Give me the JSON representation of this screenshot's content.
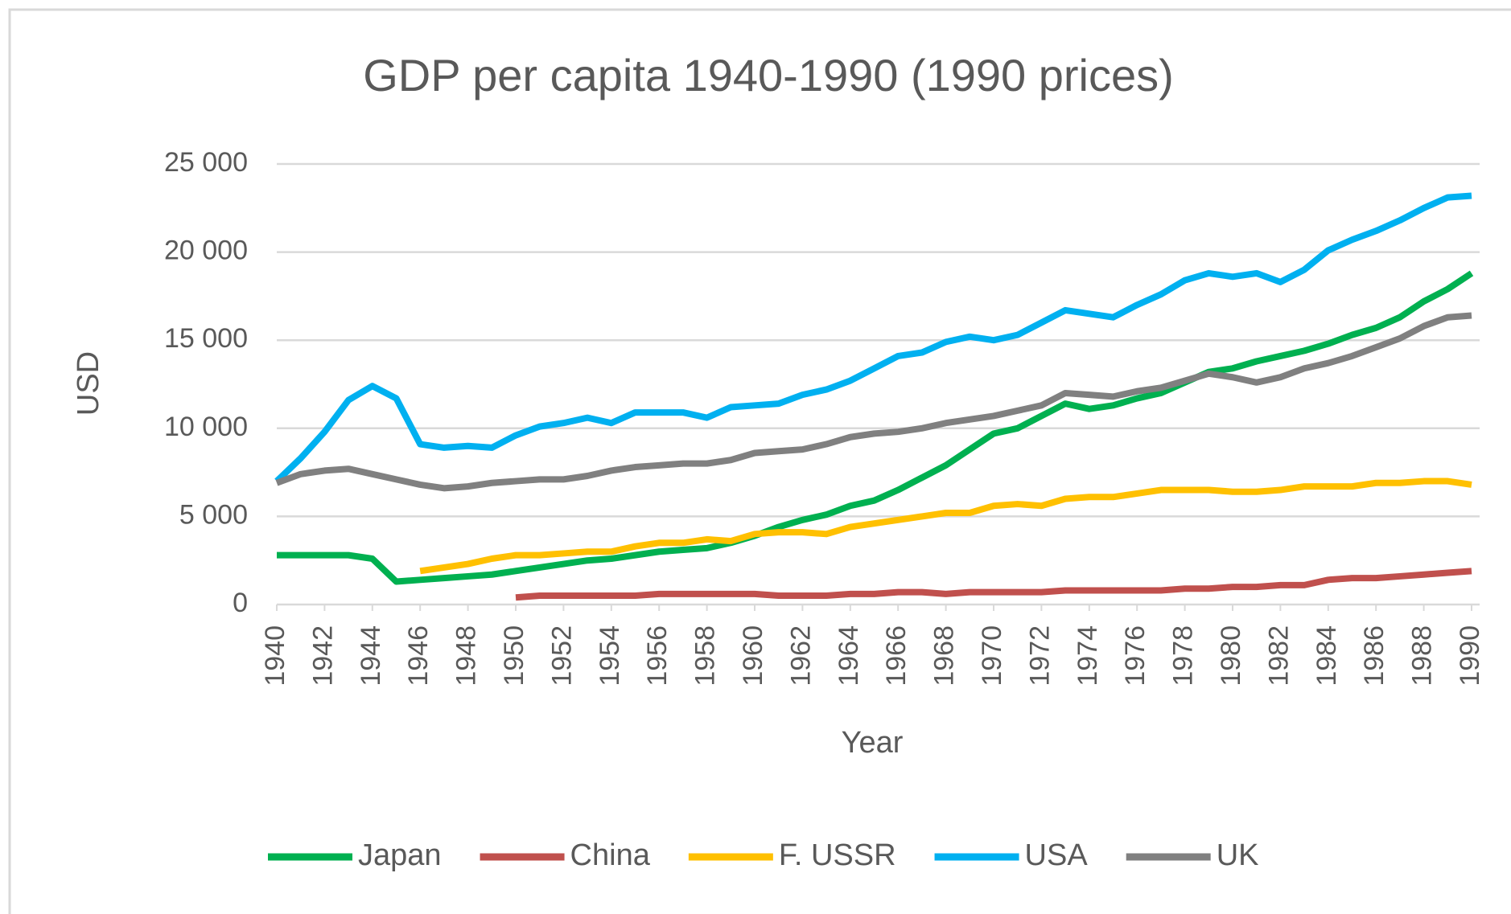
{
  "chart_data": {
    "type": "line",
    "title": "GDP per capita 1940-1990 (1990 prices)",
    "x_label": "Year",
    "y_label": "USD",
    "x": [
      1940,
      1941,
      1942,
      1943,
      1944,
      1945,
      1946,
      1947,
      1948,
      1949,
      1950,
      1951,
      1952,
      1953,
      1954,
      1955,
      1956,
      1957,
      1958,
      1959,
      1960,
      1961,
      1962,
      1963,
      1964,
      1965,
      1966,
      1967,
      1968,
      1969,
      1970,
      1971,
      1972,
      1973,
      1974,
      1975,
      1976,
      1977,
      1978,
      1979,
      1980,
      1981,
      1982,
      1983,
      1984,
      1985,
      1986,
      1987,
      1988,
      1989,
      1990
    ],
    "xlim": [
      1940,
      1990
    ],
    "xticks": [
      1940,
      1942,
      1944,
      1946,
      1948,
      1950,
      1952,
      1954,
      1956,
      1958,
      1960,
      1962,
      1964,
      1966,
      1968,
      1970,
      1972,
      1974,
      1976,
      1978,
      1980,
      1982,
      1984,
      1986,
      1988,
      1990
    ],
    "ylim": [
      0,
      25000
    ],
    "yticks": [
      0,
      {
        "value": 5000,
        "label": "5 000"
      },
      {
        "value": 10000,
        "label": "10 000"
      },
      {
        "value": 15000,
        "label": "15 000"
      },
      {
        "value": 20000,
        "label": "20 000"
      },
      {
        "value": 25000,
        "label": "25 000"
      }
    ],
    "grid": true,
    "legend": "bottom",
    "series": [
      {
        "name": "Japan",
        "color": "#00b050",
        "values": [
          2800,
          2800,
          2800,
          2800,
          2600,
          1300,
          1400,
          1500,
          1600,
          1700,
          1900,
          2100,
          2300,
          2500,
          2600,
          2800,
          3000,
          3100,
          3200,
          3500,
          3900,
          4400,
          4800,
          5100,
          5600,
          5900,
          6500,
          7200,
          7900,
          8800,
          9700,
          10000,
          10700,
          11400,
          11100,
          11300,
          11700,
          12000,
          12600,
          13200,
          13400,
          13800,
          14100,
          14400,
          14800,
          15300,
          15700,
          16300,
          17200,
          17900,
          18800
        ]
      },
      {
        "name": "China",
        "color": "#c0504d",
        "values": [
          null,
          null,
          null,
          null,
          null,
          null,
          null,
          null,
          null,
          null,
          400,
          500,
          500,
          500,
          500,
          500,
          600,
          600,
          600,
          600,
          600,
          500,
          500,
          500,
          600,
          600,
          700,
          700,
          600,
          700,
          700,
          700,
          700,
          800,
          800,
          800,
          800,
          800,
          900,
          900,
          1000,
          1000,
          1100,
          1100,
          1400,
          1500,
          1500,
          1600,
          1700,
          1800,
          1900
        ]
      },
      {
        "name": "F. USSR",
        "color": "#ffc000",
        "values": [
          null,
          null,
          null,
          null,
          null,
          null,
          1900,
          2100,
          2300,
          2600,
          2800,
          2800,
          2900,
          3000,
          3000,
          3300,
          3500,
          3500,
          3700,
          3600,
          4000,
          4100,
          4100,
          4000,
          4400,
          4600,
          4800,
          5000,
          5200,
          5200,
          5600,
          5700,
          5600,
          6000,
          6100,
          6100,
          6300,
          6500,
          6500,
          6500,
          6400,
          6400,
          6500,
          6700,
          6700,
          6700,
          6900,
          6900,
          7000,
          7000,
          6800
        ]
      },
      {
        "name": "USA",
        "color": "#00b0f0",
        "values": [
          7000,
          8300,
          9800,
          11600,
          12400,
          11700,
          9100,
          8900,
          9000,
          8900,
          9600,
          10100,
          10300,
          10600,
          10300,
          10900,
          10900,
          10900,
          10600,
          11200,
          11300,
          11400,
          11900,
          12200,
          12700,
          13400,
          14100,
          14300,
          14900,
          15200,
          15000,
          15300,
          16000,
          16700,
          16500,
          16300,
          17000,
          17600,
          18400,
          18800,
          18600,
          18800,
          18300,
          19000,
          20100,
          20700,
          21200,
          21800,
          22500,
          23100,
          23200
        ]
      },
      {
        "name": "UK",
        "color": "#808080",
        "values": [
          6900,
          7400,
          7600,
          7700,
          7400,
          7100,
          6800,
          6600,
          6700,
          6900,
          7000,
          7100,
          7100,
          7300,
          7600,
          7800,
          7900,
          8000,
          8000,
          8200,
          8600,
          8700,
          8800,
          9100,
          9500,
          9700,
          9800,
          10000,
          10300,
          10500,
          10700,
          11000,
          11300,
          12000,
          11900,
          11800,
          12100,
          12300,
          12700,
          13100,
          12900,
          12600,
          12900,
          13400,
          13700,
          14100,
          14600,
          15100,
          15800,
          16300,
          16400
        ]
      }
    ]
  }
}
